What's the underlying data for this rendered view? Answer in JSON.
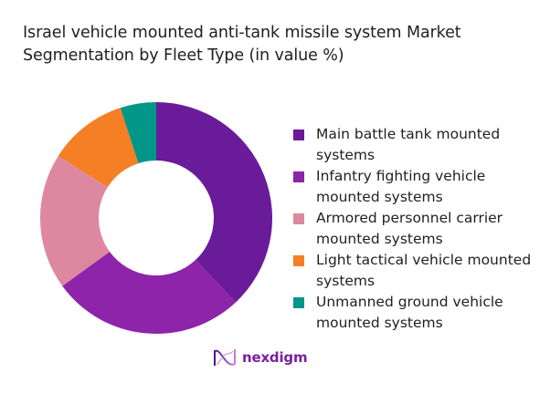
{
  "title_line1": "Israel vehicle mounted anti-tank missile system Market",
  "title_line2": "Segmentation by Fleet Type (in value %)",
  "chart_data": {
    "type": "pie",
    "subtype": "donut",
    "title": "Israel vehicle mounted anti-tank missile system Market Segmentation by Fleet Type (in value %)",
    "categories": [
      "Main battle tank mounted systems",
      "Infantry fighting vehicle mounted systems",
      "Armored personnel carrier mounted systems",
      "Light tactical vehicle mounted systems",
      "Unmanned ground vehicle mounted systems"
    ],
    "values": [
      38,
      27,
      19,
      11,
      5
    ],
    "colors": [
      "#6A1B9A",
      "#8E24AA",
      "#DE87A0",
      "#F47F24",
      "#009688"
    ],
    "start_angle": "12 o'clock, clockwise",
    "legend_position": "right"
  },
  "legend": {
    "items": [
      {
        "label": "Main battle tank mounted systems",
        "color": "#6A1B9A"
      },
      {
        "label": "Infantry fighting vehicle mounted systems",
        "color": "#8E24AA"
      },
      {
        "label": "Armored personnel carrier mounted systems",
        "color": "#DE87A0"
      },
      {
        "label": "Light tactical vehicle mounted systems",
        "color": "#F47F24"
      },
      {
        "label": "Unmanned ground vehicle mounted systems",
        "color": "#009688"
      }
    ]
  },
  "logo": {
    "text": "nexdigm",
    "icon": "nexdigm-wave-icon",
    "color": "#7B1FA2"
  }
}
